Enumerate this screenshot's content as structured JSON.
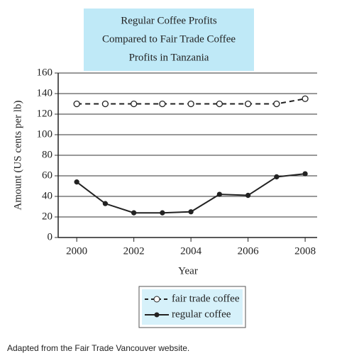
{
  "chart_data": {
    "type": "line",
    "title": [
      "Regular Coffee Profits",
      "Compared to Fair Trade Coffee",
      "Profits in Tanzania"
    ],
    "x_label": "Year",
    "y_label": "Amount (US cents per lb)",
    "x": [
      2000,
      2001,
      2002,
      2003,
      2004,
      2005,
      2006,
      2007,
      2008
    ],
    "xlim": [
      1999.35,
      2008.42
    ],
    "xticks": [
      2000,
      2002,
      2004,
      2006,
      2008
    ],
    "ylim": [
      0,
      160
    ],
    "yticks": [
      0,
      20,
      40,
      60,
      80,
      100,
      120,
      140,
      160
    ],
    "grid": true,
    "series": [
      {
        "name": "fair trade coffee",
        "color": "#222222",
        "dashed": true,
        "marker": "open",
        "values": [
          130,
          130,
          130,
          130,
          130,
          130,
          130,
          130,
          135
        ]
      },
      {
        "name": "regular coffee",
        "color": "#222222",
        "dashed": false,
        "marker": "filled",
        "values": [
          54,
          33,
          24,
          24,
          25,
          42,
          41,
          59,
          62
        ]
      }
    ],
    "source": "Adapted from the Fair Trade Vancouver website."
  }
}
